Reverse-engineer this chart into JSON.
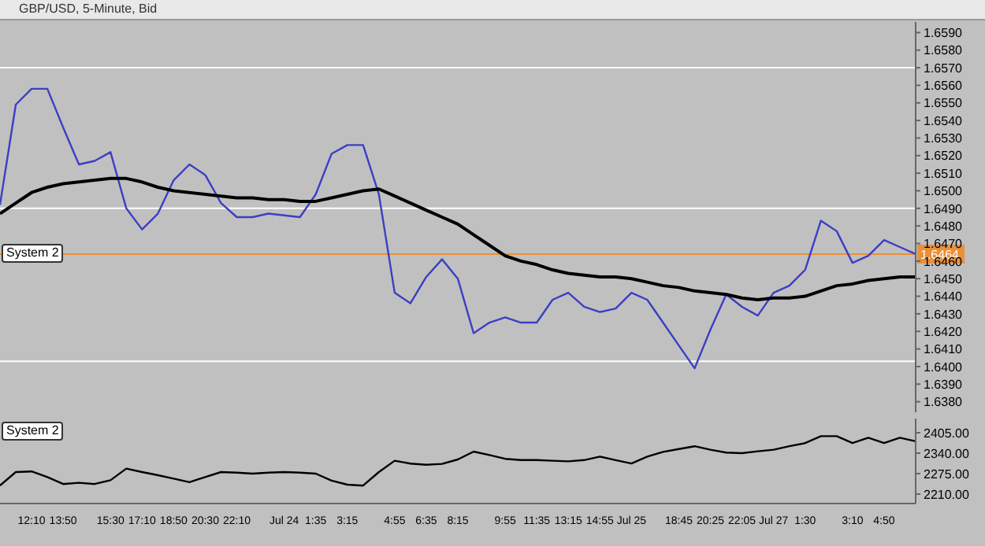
{
  "chart_data": [
    {
      "type": "line",
      "title": "GBP/USD, 5-Minute, Bid",
      "ylim": [
        1.6374,
        1.6596
      ],
      "tick_labels": "y",
      "marker": "none",
      "line_style": "solid",
      "categories": [
        null,
        null,
        null,
        null,
        null,
        null,
        null,
        null,
        null,
        null,
        null,
        null,
        null,
        null,
        null,
        null,
        null,
        null,
        null,
        null,
        null,
        null,
        null,
        null,
        null,
        null,
        null,
        null,
        null,
        null,
        null,
        null,
        null,
        null,
        null,
        null,
        null,
        null,
        null,
        null,
        null,
        null,
        null,
        null,
        null,
        null,
        null,
        null,
        null,
        null,
        null,
        null,
        null,
        null,
        null,
        null,
        null,
        null,
        null
      ],
      "yticks": [
        {
          "value": 1.638,
          "label": "1.6380"
        },
        {
          "value": 1.639,
          "label": "1.6390"
        },
        {
          "value": 1.64,
          "label": "1.6400"
        },
        {
          "value": 1.641,
          "label": "1.6410"
        },
        {
          "value": 1.642,
          "label": "1.6420"
        },
        {
          "value": 1.643,
          "label": "1.6430"
        },
        {
          "value": 1.644,
          "label": "1.6440"
        },
        {
          "value": 1.645,
          "label": "1.6450"
        },
        {
          "value": 1.646,
          "label": "1.6460"
        },
        {
          "value": 1.647,
          "label": "1.6470"
        },
        {
          "value": 1.648,
          "label": "1.6480"
        },
        {
          "value": 1.649,
          "label": "1.6490"
        },
        {
          "value": 1.65,
          "label": "1.6500"
        },
        {
          "value": 1.651,
          "label": "1.6510"
        },
        {
          "value": 1.652,
          "label": "1.6520"
        },
        {
          "value": 1.653,
          "label": "1.6530"
        },
        {
          "value": 1.654,
          "label": "1.6540"
        },
        {
          "value": 1.655,
          "label": "1.6550"
        },
        {
          "value": 1.656,
          "label": "1.6560"
        },
        {
          "value": 1.657,
          "label": "1.6570"
        },
        {
          "value": 1.658,
          "label": "1.6580"
        },
        {
          "value": 1.659,
          "label": "1.6590"
        }
      ],
      "ref_lines": [
        {
          "axis": "y",
          "value": 1.657,
          "label": null,
          "color": "#ffffff"
        },
        {
          "axis": "y",
          "value": 1.649,
          "label": null,
          "color": "#ffffff"
        },
        {
          "axis": "y",
          "value": 1.6403,
          "label": null,
          "color": "#ffffff"
        },
        {
          "axis": "y",
          "value": 1.6464,
          "label": "1.6464",
          "color": "#e8903a"
        }
      ],
      "annotations": [
        "System 2"
      ],
      "series": [
        {
          "color": "#3b3fc4",
          "values": [
            1.6492,
            1.6549,
            1.6558,
            1.6558,
            1.6536,
            1.6515,
            1.6517,
            1.6522,
            1.649,
            1.6478,
            1.6487,
            1.6506,
            1.6515,
            1.6509,
            1.6493,
            1.6485,
            1.6485,
            1.6487,
            1.6486,
            1.6485,
            1.6498,
            1.6521,
            1.6526,
            1.6526,
            1.6498,
            1.6442,
            1.6436,
            1.6451,
            1.6461,
            1.645,
            1.6419,
            1.6425,
            1.6428,
            1.6425,
            1.6425,
            1.6438,
            1.6442,
            1.6434,
            1.6431,
            1.6433,
            1.6442,
            1.6438,
            1.6425,
            1.6412,
            1.6399,
            1.6421,
            1.6441,
            1.6434,
            1.6429,
            1.6442,
            1.6446,
            1.6455,
            1.6483,
            1.6477,
            1.6459,
            1.6463,
            1.6472,
            1.6468,
            1.6464
          ]
        },
        {
          "color": "#000000",
          "values": [
            1.6487,
            1.6493,
            1.6499,
            1.6502,
            1.6504,
            1.6505,
            1.6506,
            1.6507,
            1.6507,
            1.6505,
            1.6502,
            1.65,
            1.6499,
            1.6498,
            1.6497,
            1.6496,
            1.6496,
            1.6495,
            1.6495,
            1.6494,
            1.6494,
            1.6496,
            1.6498,
            1.65,
            1.6501,
            1.6497,
            1.6493,
            1.6489,
            1.6485,
            1.6481,
            1.6475,
            1.6469,
            1.6463,
            1.646,
            1.6458,
            1.6455,
            1.6453,
            1.6452,
            1.6451,
            1.6451,
            1.645,
            1.6448,
            1.6446,
            1.6445,
            1.6443,
            1.6442,
            1.6441,
            1.6439,
            1.6438,
            1.6439,
            1.6439,
            1.644,
            1.6443,
            1.6446,
            1.6447,
            1.6449,
            1.645,
            1.6451,
            1.6451
          ]
        }
      ]
    },
    {
      "type": "line",
      "ylim": [
        2180,
        2450
      ],
      "marker": "none",
      "line_style": "solid",
      "categories": [
        null,
        null,
        "12:10",
        null,
        "13:50",
        null,
        null,
        "15:30",
        null,
        "17:10",
        null,
        "18:50",
        null,
        "20:30",
        null,
        "22:10",
        null,
        null,
        "Jul 24",
        null,
        "1:35",
        null,
        "3:15",
        null,
        null,
        "4:55",
        null,
        "6:35",
        null,
        "8:15",
        null,
        null,
        "9:55",
        null,
        "11:35",
        null,
        "13:15",
        null,
        "14:55",
        null,
        "Jul 25",
        null,
        null,
        "18:45",
        null,
        "20:25",
        null,
        "22:05",
        null,
        "Jul 27",
        null,
        "1:30",
        null,
        null,
        "3:10",
        null,
        "4:50",
        null,
        null
      ],
      "yticks": [
        {
          "value": 2210,
          "label": "2210.00"
        },
        {
          "value": 2275,
          "label": "2275.00"
        },
        {
          "value": 2340,
          "label": "2340.00"
        },
        {
          "value": 2405,
          "label": "2405.00"
        }
      ],
      "annotations": [
        "System 2"
      ],
      "series": [
        {
          "color": "#000000",
          "values": [
            2237,
            2280,
            2282,
            2264,
            2242,
            2246,
            2242,
            2254,
            2291,
            2280,
            2270,
            2259,
            2248,
            2264,
            2280,
            2278,
            2275,
            2278,
            2280,
            2278,
            2275,
            2253,
            2240,
            2237,
            2280,
            2316,
            2307,
            2303,
            2306,
            2320,
            2345,
            2334,
            2322,
            2318,
            2318,
            2316,
            2314,
            2318,
            2329,
            2318,
            2307,
            2329,
            2344,
            2353,
            2362,
            2351,
            2342,
            2340,
            2346,
            2351,
            2362,
            2372,
            2394,
            2394,
            2372,
            2389,
            2372,
            2389,
            2378
          ]
        }
      ]
    }
  ]
}
